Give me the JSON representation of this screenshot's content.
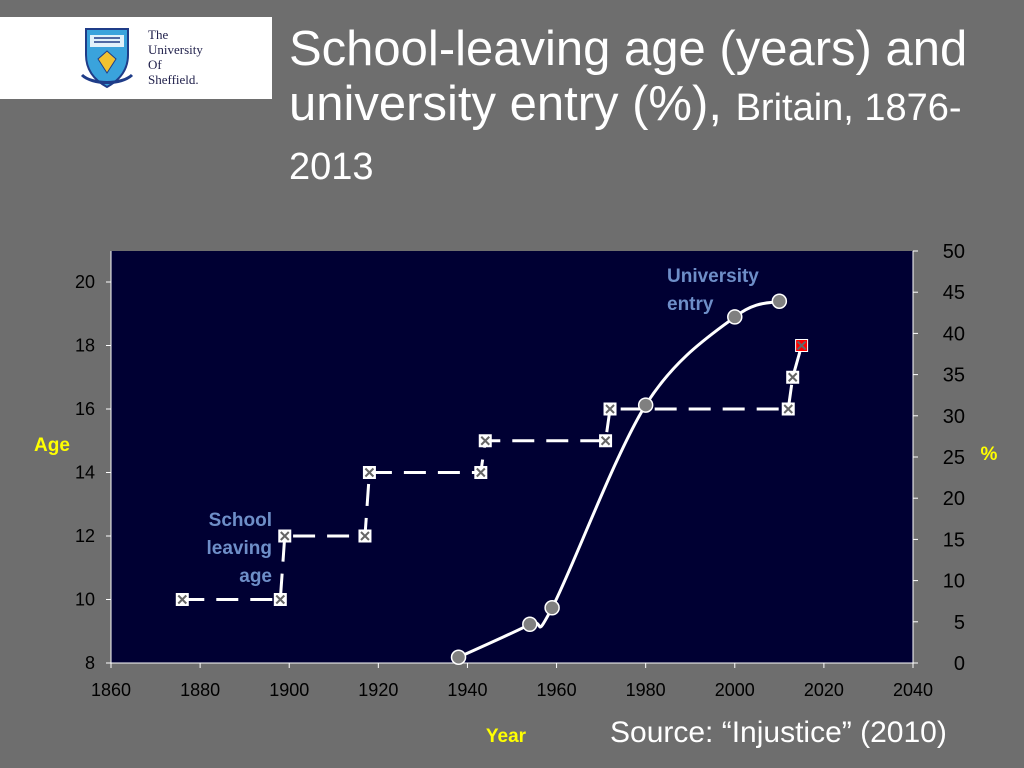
{
  "logo": {
    "lines": [
      "The",
      "University",
      "Of",
      "Sheffield."
    ]
  },
  "title": {
    "main": "School-leaving age (years) and university entry (%),",
    "sub": "Britain, 1876-2013"
  },
  "source": "Source: “Injustice” (2010)",
  "chart_data": {
    "type": "line",
    "title": "",
    "xlabel": "Year",
    "ylabel": "Age",
    "y2label": "%",
    "xlim": [
      1860,
      2040
    ],
    "ylim": [
      8,
      21
    ],
    "y2lim": [
      0,
      50
    ],
    "x_ticks": [
      1860,
      1880,
      1900,
      1920,
      1940,
      1960,
      1980,
      2000,
      2020,
      2040
    ],
    "y_ticks": [
      8,
      10,
      12,
      14,
      16,
      18,
      20
    ],
    "y2_ticks": [
      0,
      5,
      10,
      15,
      20,
      25,
      30,
      35,
      40,
      45,
      50
    ],
    "grid": false,
    "background": "#000033",
    "series": [
      {
        "name": "School leaving age",
        "label_lines": [
          "School",
          "leaving",
          "age"
        ],
        "axis": "left",
        "style": "dashed-step",
        "color": "#ffffff",
        "label_color": "#6e8ec8",
        "points": [
          {
            "x": 1876,
            "y": 10
          },
          {
            "x": 1898,
            "y": 10
          },
          {
            "x": 1899,
            "y": 12
          },
          {
            "x": 1917,
            "y": 12
          },
          {
            "x": 1918,
            "y": 14
          },
          {
            "x": 1943,
            "y": 14
          },
          {
            "x": 1944,
            "y": 15
          },
          {
            "x": 1971,
            "y": 15
          },
          {
            "x": 1972,
            "y": 16
          },
          {
            "x": 2012,
            "y": 16
          },
          {
            "x": 2013,
            "y": 17
          },
          {
            "x": 2015,
            "y": 18,
            "highlight": true
          }
        ]
      },
      {
        "name": "University entry",
        "label_lines": [
          "University",
          "entry"
        ],
        "axis": "right",
        "style": "smooth",
        "color": "#ffffff",
        "label_color": "#6e8ec8",
        "points": [
          {
            "x": 1938,
            "y": 0.7
          },
          {
            "x": 1954,
            "y": 4.7
          },
          {
            "x": 1959,
            "y": 6.7
          },
          {
            "x": 1980,
            "y": 31.3
          },
          {
            "x": 2000,
            "y": 42
          },
          {
            "x": 2010,
            "y": 43.9
          }
        ]
      }
    ],
    "colors": {
      "axis_label": "#ffff00",
      "highlight_marker": "#ff0000",
      "circle_marker": "#808080"
    }
  }
}
